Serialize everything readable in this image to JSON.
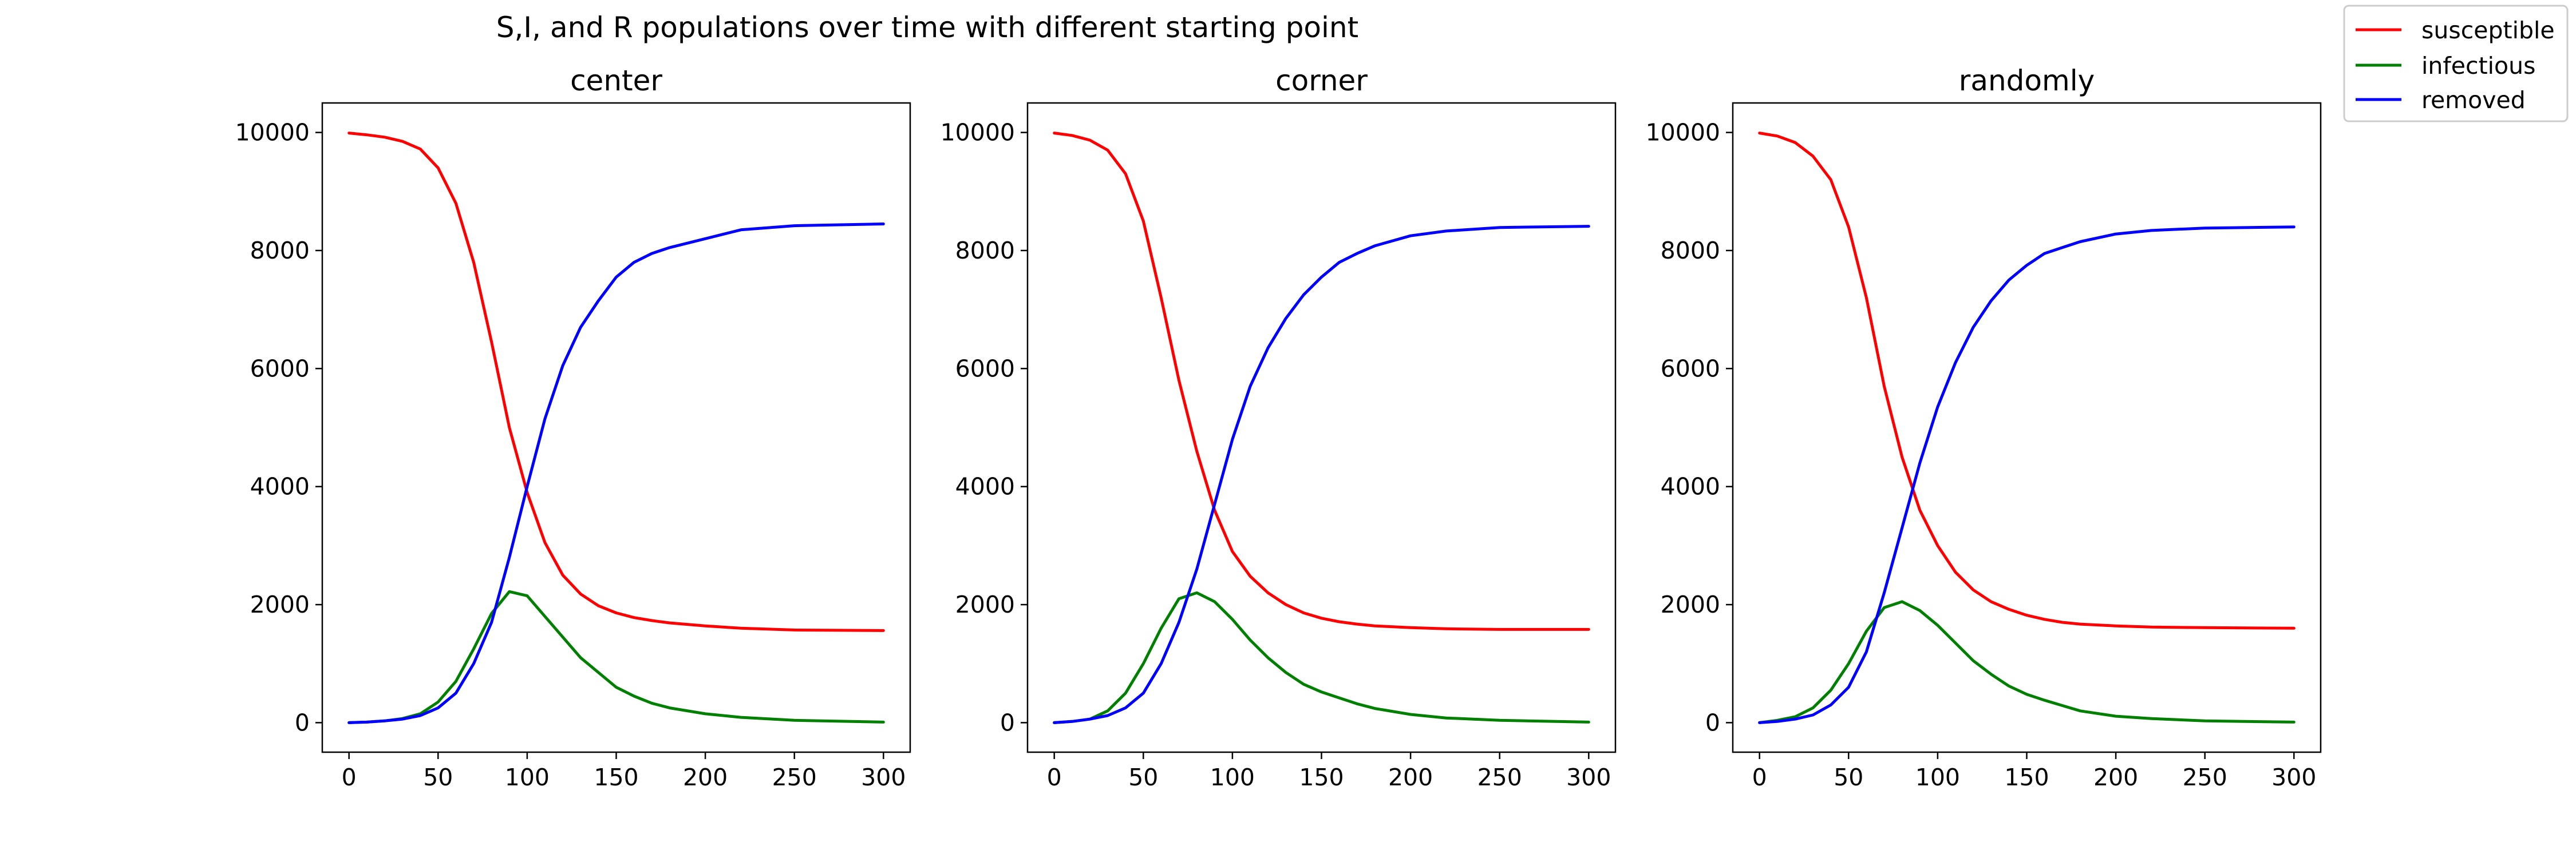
{
  "figure": {
    "title": "S,I, and R populations over time with different starting point"
  },
  "colors": {
    "susceptible": "#ff0000",
    "infectious": "#008000",
    "removed": "#0000ff"
  },
  "legend": {
    "placement": "top-right",
    "entries": [
      {
        "label": "susceptible",
        "color": "#ff0000"
      },
      {
        "label": "infectious",
        "color": "#008000"
      },
      {
        "label": "removed",
        "color": "#0000ff"
      }
    ]
  },
  "chart_data": [
    {
      "type": "line",
      "title": "center",
      "xlabel": "",
      "ylabel": "",
      "xlim": [
        -15,
        315
      ],
      "ylim": [
        -500,
        10500
      ],
      "xticks": [
        0,
        50,
        100,
        150,
        200,
        250,
        300
      ],
      "yticks": [
        0,
        2000,
        4000,
        6000,
        8000,
        10000
      ],
      "grid": false,
      "x": [
        0,
        10,
        20,
        30,
        40,
        50,
        60,
        70,
        80,
        90,
        100,
        110,
        120,
        130,
        140,
        150,
        160,
        170,
        180,
        200,
        220,
        250,
        300
      ],
      "series": [
        {
          "name": "susceptible",
          "color": "#ff0000",
          "values": [
            9990,
            9960,
            9920,
            9850,
            9720,
            9400,
            8800,
            7800,
            6450,
            5000,
            3900,
            3050,
            2500,
            2180,
            1980,
            1860,
            1780,
            1730,
            1690,
            1640,
            1600,
            1570,
            1560
          ]
        },
        {
          "name": "infectious",
          "color": "#008000",
          "values": [
            0,
            10,
            30,
            70,
            150,
            350,
            700,
            1250,
            1850,
            2220,
            2150,
            1800,
            1450,
            1100,
            850,
            600,
            450,
            330,
            250,
            150,
            90,
            40,
            10
          ]
        },
        {
          "name": "removed",
          "color": "#0000ff",
          "values": [
            0,
            10,
            30,
            60,
            120,
            250,
            500,
            1000,
            1700,
            2800,
            4000,
            5150,
            6050,
            6700,
            7150,
            7550,
            7800,
            7950,
            8050,
            8200,
            8350,
            8420,
            8450
          ]
        }
      ]
    },
    {
      "type": "line",
      "title": "corner",
      "xlabel": "",
      "ylabel": "",
      "xlim": [
        -15,
        315
      ],
      "ylim": [
        -500,
        10500
      ],
      "xticks": [
        0,
        50,
        100,
        150,
        200,
        250,
        300
      ],
      "yticks": [
        0,
        2000,
        4000,
        6000,
        8000,
        10000
      ],
      "grid": false,
      "x": [
        0,
        10,
        20,
        30,
        40,
        50,
        60,
        70,
        80,
        90,
        100,
        110,
        120,
        130,
        140,
        150,
        160,
        170,
        180,
        200,
        220,
        250,
        300
      ],
      "series": [
        {
          "name": "susceptible",
          "color": "#ff0000",
          "values": [
            9990,
            9950,
            9870,
            9700,
            9300,
            8500,
            7200,
            5800,
            4600,
            3600,
            2900,
            2480,
            2200,
            2000,
            1860,
            1770,
            1710,
            1670,
            1640,
            1610,
            1590,
            1580,
            1580
          ]
        },
        {
          "name": "infectious",
          "color": "#008000",
          "values": [
            0,
            20,
            60,
            200,
            500,
            1000,
            1600,
            2100,
            2200,
            2050,
            1750,
            1400,
            1100,
            850,
            650,
            520,
            420,
            320,
            240,
            140,
            80,
            40,
            10
          ]
        },
        {
          "name": "removed",
          "color": "#0000ff",
          "values": [
            0,
            20,
            60,
            120,
            250,
            500,
            1000,
            1700,
            2600,
            3700,
            4800,
            5700,
            6350,
            6850,
            7250,
            7550,
            7800,
            7950,
            8080,
            8250,
            8330,
            8390,
            8410
          ]
        }
      ]
    },
    {
      "type": "line",
      "title": "randomly",
      "xlabel": "",
      "ylabel": "",
      "xlim": [
        -15,
        315
      ],
      "ylim": [
        -500,
        10500
      ],
      "xticks": [
        0,
        50,
        100,
        150,
        200,
        250,
        300
      ],
      "yticks": [
        0,
        2000,
        4000,
        6000,
        8000,
        10000
      ],
      "grid": false,
      "x": [
        0,
        10,
        20,
        30,
        40,
        50,
        60,
        70,
        80,
        90,
        100,
        110,
        120,
        130,
        140,
        150,
        160,
        170,
        180,
        200,
        220,
        250,
        300
      ],
      "series": [
        {
          "name": "susceptible",
          "color": "#ff0000",
          "values": [
            9990,
            9940,
            9830,
            9600,
            9200,
            8400,
            7200,
            5700,
            4500,
            3600,
            3000,
            2550,
            2250,
            2050,
            1920,
            1820,
            1750,
            1700,
            1670,
            1640,
            1620,
            1610,
            1600
          ]
        },
        {
          "name": "infectious",
          "color": "#008000",
          "values": [
            0,
            40,
            100,
            250,
            550,
            1000,
            1550,
            1950,
            2050,
            1900,
            1650,
            1350,
            1050,
            820,
            620,
            480,
            380,
            290,
            200,
            110,
            70,
            30,
            10
          ]
        },
        {
          "name": "removed",
          "color": "#0000ff",
          "values": [
            0,
            20,
            60,
            130,
            300,
            600,
            1200,
            2200,
            3300,
            4400,
            5350,
            6100,
            6700,
            7150,
            7500,
            7750,
            7950,
            8050,
            8150,
            8280,
            8340,
            8380,
            8400
          ]
        }
      ]
    }
  ]
}
